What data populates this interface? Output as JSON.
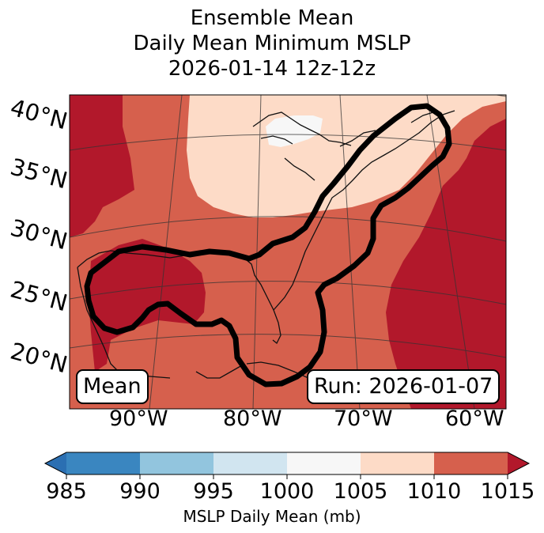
{
  "title": {
    "line1": "Ensemble Mean",
    "line2": "Daily Mean Minimum MSLP",
    "line3": "2026-01-14 12z-12z"
  },
  "lat_labels": [
    "40°N",
    "35°N",
    "30°N",
    "25°N",
    "20°N"
  ],
  "lon_labels": [
    "90°W",
    "80°W",
    "70°W",
    "60°W"
  ],
  "mean_box": "Mean",
  "run_box": "Run: 2026-01-07",
  "colorbar": {
    "title": "MSLP Daily Mean (mb)",
    "ticks": [
      "985",
      "990",
      "995",
      "1000",
      "1005",
      "1010",
      "1015"
    ],
    "colors": [
      "#2b6fb2",
      "#3a86c0",
      "#92c5de",
      "#d1e5f0",
      "#f7f7f7",
      "#fddbc7",
      "#d6604d",
      "#b2182b"
    ]
  },
  "legend_colors": {
    "low_1000_1005": "#f7f7f7",
    "mid_1005_1010": "#fddbc7",
    "high_1010_1015": "#d6604d",
    "top_above_1015": "#b2182b",
    "contour": "#000000"
  }
}
